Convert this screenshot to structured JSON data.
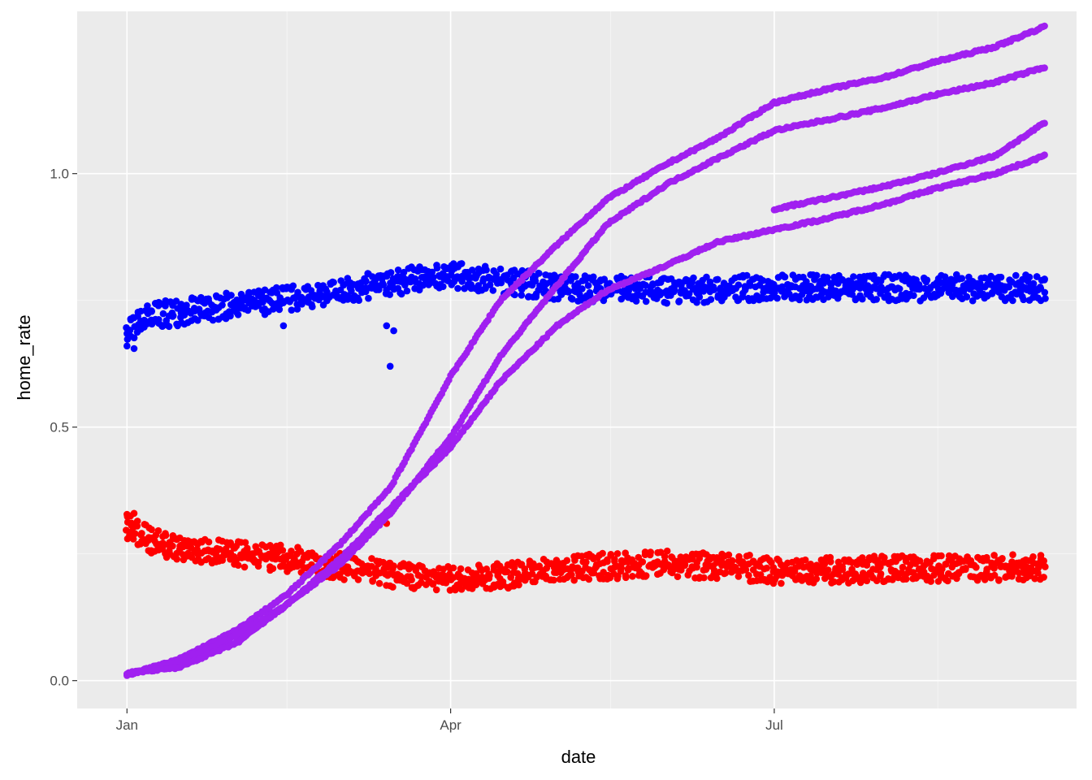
{
  "chart_data": {
    "type": "scatter",
    "title": "",
    "xlabel": "date",
    "ylabel": "home_rate",
    "x_axis": {
      "ticks": [
        {
          "value": "2020-01-01",
          "label": "Jan"
        },
        {
          "value": "2020-04-01",
          "label": "Apr"
        },
        {
          "value": "2020-07-01",
          "label": "Jul"
        }
      ],
      "minor_ticks": [
        "2020-02-15",
        "2020-05-16",
        "2020-08-16"
      ],
      "range": [
        "2019-12-18",
        "2020-09-24"
      ]
    },
    "y_axis": {
      "ticks": [
        {
          "value": 0.0,
          "label": "0.0"
        },
        {
          "value": 0.5,
          "label": "0.5"
        },
        {
          "value": 1.0,
          "label": "1.0"
        }
      ],
      "minor_ticks": [
        0.25,
        0.75
      ],
      "range": [
        -0.055,
        1.32
      ]
    },
    "grid": true,
    "legend": "none",
    "panel_background": "#ebebeb",
    "grid_color": "#ffffff",
    "series": [
      {
        "color": "#0000ff",
        "trend": [
          {
            "x": "2020-01-01",
            "y": 0.69
          },
          {
            "x": "2020-01-08",
            "y": 0.72
          },
          {
            "x": "2020-01-20",
            "y": 0.73
          },
          {
            "x": "2020-02-05",
            "y": 0.745
          },
          {
            "x": "2020-02-25",
            "y": 0.76
          },
          {
            "x": "2020-03-15",
            "y": 0.785
          },
          {
            "x": "2020-04-01",
            "y": 0.8
          },
          {
            "x": "2020-04-15",
            "y": 0.79
          },
          {
            "x": "2020-05-01",
            "y": 0.775
          },
          {
            "x": "2020-06-01",
            "y": 0.77
          },
          {
            "x": "2020-07-01",
            "y": 0.775
          },
          {
            "x": "2020-08-01",
            "y": 0.775
          },
          {
            "x": "2020-09-15",
            "y": 0.775
          }
        ],
        "outliers": [
          {
            "x": "2020-01-01",
            "y": 0.66
          },
          {
            "x": "2020-01-03",
            "y": 0.655
          },
          {
            "x": "2020-03-14",
            "y": 0.7
          },
          {
            "x": "2020-03-16",
            "y": 0.69
          },
          {
            "x": "2020-03-15",
            "y": 0.62
          },
          {
            "x": "2020-02-14",
            "y": 0.7
          }
        ]
      },
      {
        "color": "#ff0000",
        "trend": [
          {
            "x": "2020-01-01",
            "y": 0.3
          },
          {
            "x": "2020-01-10",
            "y": 0.27
          },
          {
            "x": "2020-01-25",
            "y": 0.255
          },
          {
            "x": "2020-02-15",
            "y": 0.24
          },
          {
            "x": "2020-03-01",
            "y": 0.225
          },
          {
            "x": "2020-03-20",
            "y": 0.205
          },
          {
            "x": "2020-04-05",
            "y": 0.2
          },
          {
            "x": "2020-04-20",
            "y": 0.21
          },
          {
            "x": "2020-05-10",
            "y": 0.225
          },
          {
            "x": "2020-06-01",
            "y": 0.23
          },
          {
            "x": "2020-06-20",
            "y": 0.225
          },
          {
            "x": "2020-07-01",
            "y": 0.215
          },
          {
            "x": "2020-08-01",
            "y": 0.22
          },
          {
            "x": "2020-09-15",
            "y": 0.225
          }
        ],
        "outliers": [
          {
            "x": "2020-01-01",
            "y": 0.328
          },
          {
            "x": "2020-01-02",
            "y": 0.325
          },
          {
            "x": "2020-01-03",
            "y": 0.33
          },
          {
            "x": "2020-03-14",
            "y": 0.31
          }
        ]
      },
      {
        "color": "#a020f0",
        "curves": [
          [
            {
              "x": "2020-01-01",
              "y": 0.012
            },
            {
              "x": "2020-01-15",
              "y": 0.04
            },
            {
              "x": "2020-02-01",
              "y": 0.1
            },
            {
              "x": "2020-02-15",
              "y": 0.17
            },
            {
              "x": "2020-03-01",
              "y": 0.27
            },
            {
              "x": "2020-03-15",
              "y": 0.38
            },
            {
              "x": "2020-04-01",
              "y": 0.6
            },
            {
              "x": "2020-04-15",
              "y": 0.75
            },
            {
              "x": "2020-05-01",
              "y": 0.86
            },
            {
              "x": "2020-05-15",
              "y": 0.95
            },
            {
              "x": "2020-06-01",
              "y": 1.02
            },
            {
              "x": "2020-06-15",
              "y": 1.07
            },
            {
              "x": "2020-07-01",
              "y": 1.14
            },
            {
              "x": "2020-07-15",
              "y": 1.165
            },
            {
              "x": "2020-08-01",
              "y": 1.19
            },
            {
              "x": "2020-08-15",
              "y": 1.22
            },
            {
              "x": "2020-09-01",
              "y": 1.25
            },
            {
              "x": "2020-09-15",
              "y": 1.29
            }
          ],
          [
            {
              "x": "2020-01-01",
              "y": 0.012
            },
            {
              "x": "2020-01-15",
              "y": 0.035
            },
            {
              "x": "2020-02-01",
              "y": 0.09
            },
            {
              "x": "2020-02-15",
              "y": 0.15
            },
            {
              "x": "2020-03-01",
              "y": 0.23
            },
            {
              "x": "2020-03-15",
              "y": 0.33
            },
            {
              "x": "2020-04-01",
              "y": 0.48
            },
            {
              "x": "2020-04-15",
              "y": 0.64
            },
            {
              "x": "2020-05-01",
              "y": 0.78
            },
            {
              "x": "2020-05-15",
              "y": 0.9
            },
            {
              "x": "2020-06-01",
              "y": 0.98
            },
            {
              "x": "2020-06-15",
              "y": 1.03
            },
            {
              "x": "2020-07-01",
              "y": 1.085
            },
            {
              "x": "2020-07-15",
              "y": 1.105
            },
            {
              "x": "2020-08-01",
              "y": 1.13
            },
            {
              "x": "2020-08-15",
              "y": 1.155
            },
            {
              "x": "2020-09-01",
              "y": 1.18
            },
            {
              "x": "2020-09-15",
              "y": 1.21
            }
          ],
          [
            {
              "x": "2020-01-01",
              "y": 0.015
            },
            {
              "x": "2020-01-15",
              "y": 0.025
            },
            {
              "x": "2020-02-01",
              "y": 0.075
            },
            {
              "x": "2020-02-15",
              "y": 0.15
            },
            {
              "x": "2020-03-01",
              "y": 0.24
            },
            {
              "x": "2020-03-15",
              "y": 0.34
            },
            {
              "x": "2020-04-01",
              "y": 0.46
            },
            {
              "x": "2020-04-15",
              "y": 0.59
            },
            {
              "x": "2020-05-01",
              "y": 0.7
            },
            {
              "x": "2020-05-15",
              "y": 0.77
            },
            {
              "x": "2020-06-01",
              "y": 0.82
            },
            {
              "x": "2020-06-15",
              "y": 0.865
            },
            {
              "x": "2020-07-01",
              "y": 0.89
            },
            {
              "x": "2020-07-15",
              "y": 0.91
            },
            {
              "x": "2020-08-01",
              "y": 0.94
            },
            {
              "x": "2020-08-15",
              "y": 0.97
            },
            {
              "x": "2020-09-01",
              "y": 1.0
            },
            {
              "x": "2020-09-15",
              "y": 1.035
            }
          ],
          [
            {
              "x": "2020-07-01",
              "y": 0.93
            },
            {
              "x": "2020-07-15",
              "y": 0.95
            },
            {
              "x": "2020-08-01",
              "y": 0.975
            },
            {
              "x": "2020-08-15",
              "y": 1.0
            },
            {
              "x": "2020-09-01",
              "y": 1.035
            },
            {
              "x": "2020-09-15",
              "y": 1.1
            }
          ]
        ]
      }
    ]
  }
}
